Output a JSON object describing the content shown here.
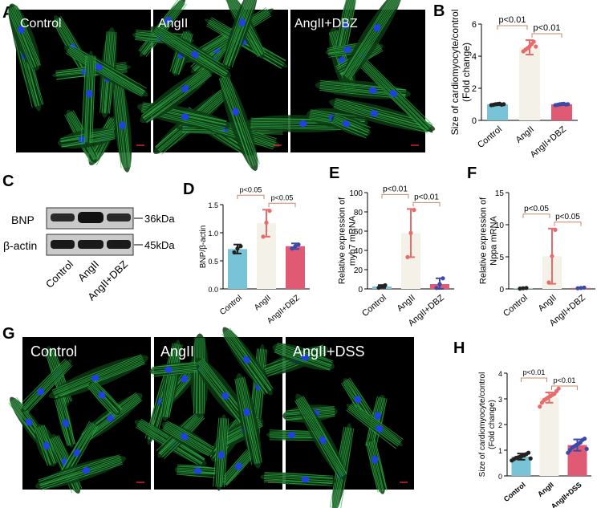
{
  "panel_letters": {
    "A": "A",
    "B": "B",
    "C": "C",
    "D": "D",
    "E": "E",
    "F": "F",
    "G": "G",
    "H": "H"
  },
  "micrographs_top": [
    {
      "label": "Control"
    },
    {
      "label": "AngII"
    },
    {
      "label": "AngII+DBZ"
    }
  ],
  "micrographs_bottom": [
    {
      "label": "Control"
    },
    {
      "label": "AngII"
    },
    {
      "label": "AngII+DSS"
    }
  ],
  "colors": {
    "control": "#79c3d6",
    "angii": "#f4f2e8",
    "dbz": "#e05a74",
    "dss": "#e05a74",
    "dot_control": "#222222",
    "dot_angii": "#e86b6b",
    "dot_treat": "#3b4aa8",
    "bracket": "#c8876a",
    "actin": "#2fb84a",
    "nucleus": "#2040e0"
  },
  "western": {
    "rows": [
      {
        "protein": "BNP",
        "mw": "36kDa"
      },
      {
        "protein": "β-actin",
        "mw": "45kDa"
      }
    ],
    "lanes": [
      "Control",
      "AngII",
      "AngII+DBZ"
    ]
  },
  "chart_data": [
    {
      "panel": "B",
      "type": "bar",
      "categories": [
        "Control",
        "AngII",
        "AngII+DBZ"
      ],
      "values": [
        1.0,
        4.55,
        1.0
      ],
      "errors": [
        0.05,
        0.45,
        0.05
      ],
      "points": [
        [
          0.95,
          0.97,
          1.0,
          1.02,
          1.04,
          0.98,
          1.01
        ],
        [
          4.3,
          4.4,
          4.5,
          4.6,
          4.75,
          4.9,
          4.6
        ],
        [
          0.95,
          0.97,
          1.0,
          1.02,
          1.03,
          0.99,
          1.01
        ]
      ],
      "ylabel": "Size of cardiomyocyte/control (Fold change)",
      "ylim": [
        0,
        6
      ],
      "yticks": [
        "0",
        "2",
        "4",
        "6"
      ],
      "comparisons": [
        {
          "from": 0,
          "to": 1,
          "text": "p<0.01"
        },
        {
          "from": 1,
          "to": 2,
          "text": "p<0.01"
        }
      ]
    },
    {
      "panel": "D",
      "type": "bar",
      "categories": [
        "Control",
        "AngII",
        "AngII+DBZ"
      ],
      "values": [
        0.71,
        1.17,
        0.76
      ],
      "errors": [
        0.08,
        0.24,
        0.05
      ],
      "points": [
        [
          0.65,
          0.72,
          0.76
        ],
        [
          0.93,
          1.18,
          1.39
        ],
        [
          0.72,
          0.76,
          0.79
        ]
      ],
      "ylabel": "BNP/β-actin",
      "ylim": [
        0,
        1.5
      ],
      "yticks": [
        "0.0",
        "0.5",
        "1.0",
        "1.5"
      ],
      "comparisons": [
        {
          "from": 0,
          "to": 1,
          "text": "p<0.05"
        },
        {
          "from": 1,
          "to": 2,
          "text": "p<0.05"
        }
      ]
    },
    {
      "panel": "E",
      "type": "bar",
      "categories": [
        "Control",
        "AngII",
        "AngII+DBZ"
      ],
      "values": [
        2.5,
        58,
        5
      ],
      "errors": [
        1.5,
        25,
        6
      ],
      "points": [
        [
          1.2,
          2.5,
          3.8
        ],
        [
          33,
          58,
          82
        ],
        [
          1,
          5,
          11
        ]
      ],
      "ylabel": "Relative expression of myh7 mRNA",
      "ylim": [
        0,
        100
      ],
      "yticks": [
        "0",
        "20",
        "40",
        "60",
        "80",
        "100"
      ],
      "comparisons": [
        {
          "from": 0,
          "to": 1,
          "text": "p<0.01"
        },
        {
          "from": 1,
          "to": 2,
          "text": "p<0.01"
        }
      ]
    },
    {
      "panel": "F",
      "type": "bar",
      "categories": [
        "Control",
        "AngII",
        "AngII+DBZ"
      ],
      "values": [
        0.1,
        5.1,
        0.15
      ],
      "errors": [
        0.1,
        4.3,
        0.1
      ],
      "points": [
        [
          0.05,
          0.1,
          0.15
        ],
        [
          1.0,
          5.1,
          9.2
        ],
        [
          0.1,
          0.15,
          0.2
        ]
      ],
      "ylabel": "Relative expression of Nppa mRNA",
      "ylim": [
        0,
        15
      ],
      "yticks": [
        "0",
        "5",
        "10",
        "15"
      ],
      "comparisons": [
        {
          "from": 0,
          "to": 1,
          "text": "p<0.05"
        },
        {
          "from": 1,
          "to": 2,
          "text": "p<0.05"
        }
      ]
    },
    {
      "panel": "H",
      "type": "bar",
      "categories": [
        "Control",
        "AngII",
        "AngII+DSS"
      ],
      "values": [
        0.75,
        3.05,
        1.2
      ],
      "errors": [
        0.12,
        0.2,
        0.22
      ],
      "points": [
        [
          0.6,
          0.65,
          0.7,
          0.72,
          0.75,
          0.78,
          0.8,
          0.85,
          0.9,
          0.68
        ],
        [
          2.7,
          2.85,
          2.95,
          3.0,
          3.05,
          3.1,
          3.15,
          3.2,
          3.3,
          3.4
        ],
        [
          0.9,
          1.0,
          1.1,
          1.15,
          1.2,
          1.25,
          1.3,
          1.4,
          1.45,
          1.05
        ]
      ],
      "ylabel": "Size of cardiomyocyte/control (Fold change)",
      "ylim": [
        0,
        4
      ],
      "yticks": [
        "0",
        "1",
        "2",
        "3",
        "4"
      ],
      "comparisons": [
        {
          "from": 0,
          "to": 1,
          "text": "p<0.01"
        },
        {
          "from": 1,
          "to": 2,
          "text": "p<0.01"
        }
      ]
    }
  ]
}
